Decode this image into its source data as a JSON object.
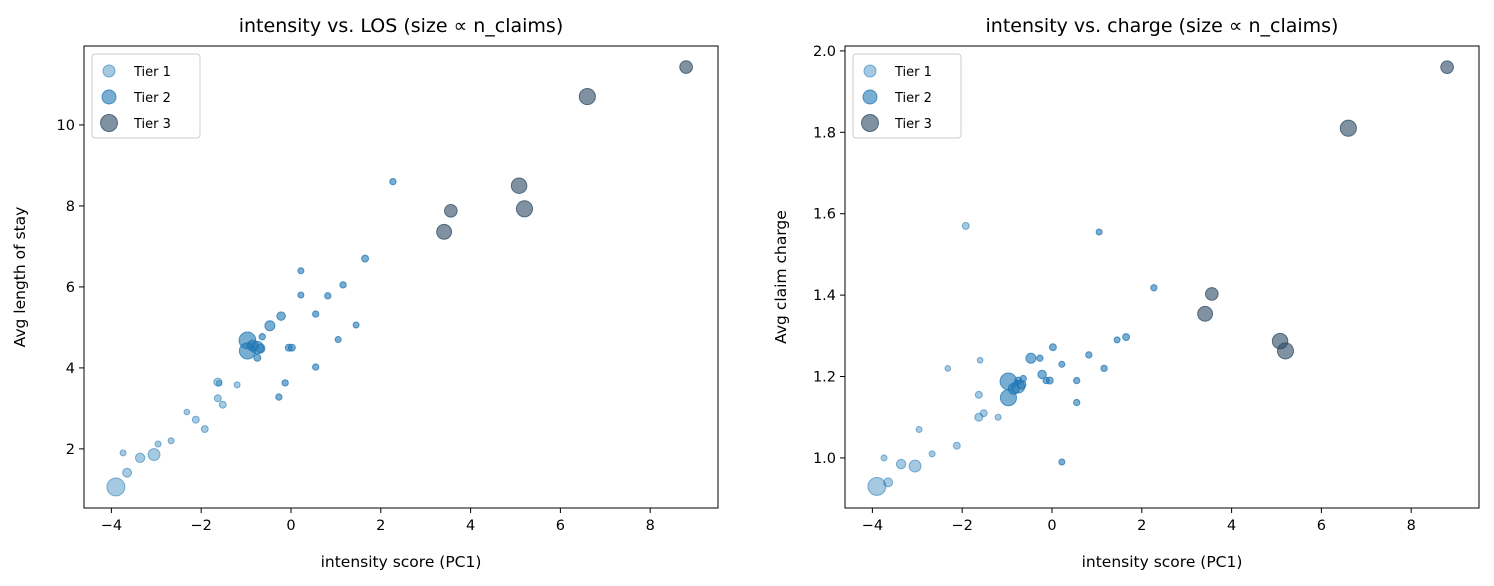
{
  "chart_data": [
    {
      "type": "scatter",
      "title": "intensity vs. LOS (size ∝ n_claims)",
      "xlabel": "intensity score (PC1)",
      "ylabel": "Avg length of stay",
      "xlim": [
        -4.61,
        9.51
      ],
      "ylim": [
        0.54,
        11.95
      ],
      "xticks": [
        -4,
        -2,
        0,
        2,
        4,
        6,
        8
      ],
      "yticks": [
        2,
        4,
        6,
        8,
        10
      ],
      "ytick_labels": [
        "2",
        "4",
        "6",
        "8",
        "10"
      ],
      "yfield": "los",
      "legend": "upper-left",
      "grid": false
    },
    {
      "type": "scatter",
      "title": "intensity vs. charge (size ∝ n_claims)",
      "xlabel": "intensity score (PC1)",
      "ylabel": "Avg claim charge",
      "xlim": [
        -4.61,
        9.51
      ],
      "ylim": [
        0.877,
        2.012
      ],
      "xticks": [
        -4,
        -2,
        0,
        2,
        4,
        6,
        8
      ],
      "yticks": [
        1.0,
        1.2,
        1.4,
        1.6,
        1.8,
        2.0
      ],
      "ytick_labels": [
        "1.0",
        "1.2",
        "1.4",
        "1.6",
        "1.8",
        "2.0"
      ],
      "yfield": "charge",
      "legend": "upper-left",
      "grid": false
    }
  ],
  "series": [
    {
      "name": "Tier 1",
      "color": "#1f77b4",
      "alpha": 0.4
    },
    {
      "name": "Tier 2",
      "color": "#1f77b4",
      "alpha": 0.6
    },
    {
      "name": "Tier 3",
      "color": "#2c4a63",
      "alpha": 0.6
    }
  ],
  "points": [
    {
      "x": -3.9,
      "los": 1.06,
      "charge": 0.93,
      "tier": 1,
      "n": 80
    },
    {
      "x": -3.65,
      "los": 1.41,
      "charge": 0.94,
      "tier": 1,
      "n": 20
    },
    {
      "x": -3.74,
      "los": 1.9,
      "charge": 1.0,
      "tier": 1,
      "n": 9
    },
    {
      "x": -3.36,
      "los": 1.78,
      "charge": 0.985,
      "tier": 1,
      "n": 22
    },
    {
      "x": -3.05,
      "los": 1.86,
      "charge": 0.98,
      "tier": 1,
      "n": 35
    },
    {
      "x": -2.96,
      "los": 2.12,
      "charge": 1.07,
      "tier": 1,
      "n": 9
    },
    {
      "x": -2.67,
      "los": 2.2,
      "charge": 1.01,
      "tier": 1,
      "n": 9
    },
    {
      "x": -2.32,
      "los": 2.91,
      "charge": 1.22,
      "tier": 1,
      "n": 8
    },
    {
      "x": -2.12,
      "los": 2.72,
      "charge": 1.03,
      "tier": 1,
      "n": 12
    },
    {
      "x": -1.92,
      "los": 2.49,
      "charge": 1.57,
      "tier": 1,
      "n": 12
    },
    {
      "x": -1.63,
      "los": 3.65,
      "charge": 1.1,
      "tier": 1,
      "n": 16
    },
    {
      "x": -1.63,
      "los": 3.25,
      "charge": 1.155,
      "tier": 1,
      "n": 12
    },
    {
      "x": -1.52,
      "los": 3.09,
      "charge": 1.11,
      "tier": 1,
      "n": 12
    },
    {
      "x": -1.6,
      "los": 3.62,
      "charge": 1.24,
      "tier": 1,
      "n": 8
    },
    {
      "x": -1.2,
      "los": 3.58,
      "charge": 1.1,
      "tier": 1,
      "n": 9
    },
    {
      "x": -0.97,
      "los": 4.68,
      "charge": 1.188,
      "tier": 2,
      "n": 70
    },
    {
      "x": -0.97,
      "los": 4.42,
      "charge": 1.148,
      "tier": 2,
      "n": 65
    },
    {
      "x": -0.85,
      "los": 4.55,
      "charge": 1.17,
      "tier": 2,
      "n": 30
    },
    {
      "x": -0.75,
      "los": 4.5,
      "charge": 1.175,
      "tier": 2,
      "n": 40
    },
    {
      "x": -0.68,
      "los": 4.48,
      "charge": 1.18,
      "tier": 2,
      "n": 20
    },
    {
      "x": -0.75,
      "los": 4.25,
      "charge": 1.19,
      "tier": 2,
      "n": 12
    },
    {
      "x": -0.64,
      "los": 4.77,
      "charge": 1.195,
      "tier": 2,
      "n": 10
    },
    {
      "x": -0.47,
      "los": 5.04,
      "charge": 1.245,
      "tier": 2,
      "n": 25
    },
    {
      "x": -0.22,
      "los": 5.28,
      "charge": 1.205,
      "tier": 2,
      "n": 18
    },
    {
      "x": -0.05,
      "los": 4.5,
      "charge": 1.19,
      "tier": 2,
      "n": 12
    },
    {
      "x": 0.02,
      "los": 4.5,
      "charge": 1.272,
      "tier": 2,
      "n": 12
    },
    {
      "x": -0.27,
      "los": 3.28,
      "charge": 1.245,
      "tier": 2,
      "n": 10
    },
    {
      "x": -0.13,
      "los": 3.63,
      "charge": 1.19,
      "tier": 2,
      "n": 10
    },
    {
      "x": 0.22,
      "los": 6.4,
      "charge": 0.99,
      "tier": 2,
      "n": 9
    },
    {
      "x": 0.22,
      "los": 5.8,
      "charge": 1.23,
      "tier": 2,
      "n": 9
    },
    {
      "x": 0.55,
      "los": 5.33,
      "charge": 1.19,
      "tier": 2,
      "n": 10
    },
    {
      "x": 0.55,
      "los": 4.02,
      "charge": 1.136,
      "tier": 2,
      "n": 10
    },
    {
      "x": 0.82,
      "los": 5.78,
      "charge": 1.253,
      "tier": 2,
      "n": 10
    },
    {
      "x": 1.05,
      "los": 4.7,
      "charge": 1.555,
      "tier": 2,
      "n": 9
    },
    {
      "x": 1.16,
      "los": 6.05,
      "charge": 1.22,
      "tier": 2,
      "n": 10
    },
    {
      "x": 1.45,
      "los": 5.06,
      "charge": 1.29,
      "tier": 2,
      "n": 9
    },
    {
      "x": 1.65,
      "los": 6.7,
      "charge": 1.297,
      "tier": 2,
      "n": 12
    },
    {
      "x": 2.27,
      "los": 8.6,
      "charge": 1.418,
      "tier": 2,
      "n": 10
    },
    {
      "x": 3.41,
      "los": 7.36,
      "charge": 1.354,
      "tier": 3,
      "n": 55
    },
    {
      "x": 3.56,
      "los": 7.88,
      "charge": 1.403,
      "tier": 3,
      "n": 40
    },
    {
      "x": 5.08,
      "los": 8.5,
      "charge": 1.287,
      "tier": 3,
      "n": 60
    },
    {
      "x": 5.2,
      "los": 7.93,
      "charge": 1.263,
      "tier": 3,
      "n": 65
    },
    {
      "x": 6.6,
      "los": 10.7,
      "charge": 1.81,
      "tier": 3,
      "n": 65
    },
    {
      "x": 8.8,
      "los": 11.43,
      "charge": 1.96,
      "tier": 3,
      "n": 40
    }
  ]
}
